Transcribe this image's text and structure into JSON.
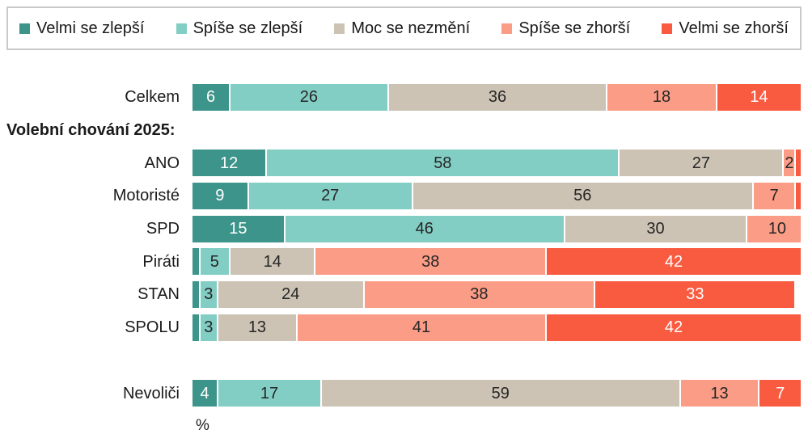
{
  "chart_data": {
    "type": "stacked_bar_horizontal",
    "unit": "%",
    "legend_position": "top",
    "axis_note": "%",
    "group_header": "Volební chování 2025:",
    "series_names": [
      "Velmi se zlepší",
      "Spíše se zlepší",
      "Moc se nezmění",
      "Spíše se zhorší",
      "Velmi se zhorší"
    ],
    "series_colors": [
      "#3D948B",
      "#82CEC4",
      "#CCC3B4",
      "#FB9C86",
      "#F95B40"
    ],
    "series_label_colors": [
      "#FFFFFF",
      "#262626",
      "#262626",
      "#262626",
      "#FFFFFF"
    ],
    "label_min_value_to_show": 2,
    "xlim": [
      0,
      100
    ],
    "categories": [
      "Celkem",
      "ANO",
      "Motoristé",
      "SPD",
      "Piráti",
      "STAN",
      "SPOLU",
      "Nevoliči"
    ],
    "rows": [
      {
        "type": "bar",
        "label": "Celkem",
        "values": [
          6,
          26,
          36,
          18,
          14
        ]
      },
      {
        "type": "header",
        "label": "Volební chování 2025:"
      },
      {
        "type": "bar",
        "label": "ANO",
        "values": [
          12,
          58,
          27,
          2,
          1
        ]
      },
      {
        "type": "bar",
        "label": "Motoristé",
        "values": [
          9,
          27,
          56,
          7,
          1
        ]
      },
      {
        "type": "bar",
        "label": "SPD",
        "values": [
          15,
          46,
          30,
          10,
          0
        ]
      },
      {
        "type": "bar",
        "label": "Piráti",
        "values": [
          1,
          5,
          14,
          38,
          42
        ]
      },
      {
        "type": "bar",
        "label": "STAN",
        "values": [
          1,
          3,
          24,
          38,
          33
        ]
      },
      {
        "type": "bar",
        "label": "SPOLU",
        "values": [
          1,
          3,
          13,
          41,
          42
        ]
      },
      {
        "type": "spacer"
      },
      {
        "type": "bar",
        "label": "Nevoliči",
        "values": [
          4,
          17,
          59,
          13,
          7
        ]
      },
      {
        "type": "axis",
        "label": "%"
      }
    ]
  },
  "colors": {
    "background": "#FFFFFF",
    "legend_border": "#C9C9C9",
    "text": "#1A1A1A",
    "segment_gap": "#FFFFFF"
  }
}
